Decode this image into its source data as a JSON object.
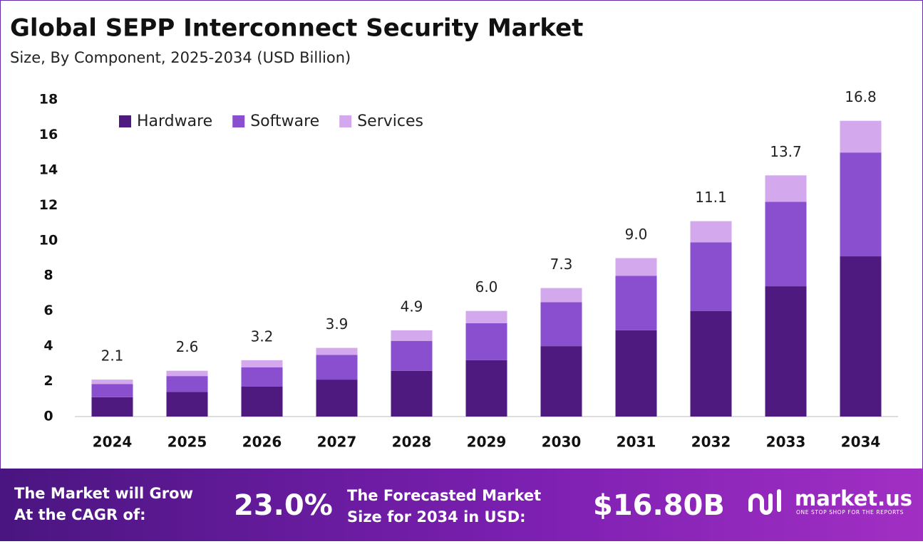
{
  "chart_data": {
    "type": "stacked-bar",
    "title": "Global SEPP Interconnect Security Market",
    "subtitle": "Size, By Component, 2025-2034 (USD Billion)",
    "categories": [
      "2024",
      "2025",
      "2026",
      "2027",
      "2028",
      "2029",
      "2030",
      "2031",
      "2032",
      "2033",
      "2034"
    ],
    "series": [
      {
        "name": "Hardware",
        "color": "#4e1a80",
        "values": [
          1.1,
          1.4,
          1.7,
          2.1,
          2.6,
          3.2,
          4.0,
          4.9,
          6.0,
          7.4,
          9.1
        ]
      },
      {
        "name": "Software",
        "color": "#8a4fcf",
        "values": [
          0.75,
          0.9,
          1.1,
          1.4,
          1.7,
          2.1,
          2.5,
          3.1,
          3.9,
          4.8,
          5.9
        ]
      },
      {
        "name": "Services",
        "color": "#d3a8ec",
        "values": [
          0.25,
          0.3,
          0.4,
          0.4,
          0.6,
          0.7,
          0.8,
          1.0,
          1.2,
          1.5,
          1.8
        ]
      }
    ],
    "totals": [
      2.1,
      2.6,
      3.2,
      3.9,
      4.9,
      6.0,
      7.3,
      9.0,
      11.1,
      13.7,
      16.8
    ],
    "total_labels": [
      "2.1",
      "2.6",
      "3.2",
      "3.9",
      "4.9",
      "6.0",
      "7.3",
      "9.0",
      "11.1",
      "13.7",
      "16.8"
    ],
    "ylim": [
      0,
      18
    ],
    "yticks": [
      0,
      2,
      4,
      6,
      8,
      10,
      12,
      14,
      16,
      18
    ],
    "grid": false,
    "legend": "top-left"
  },
  "footer": {
    "cagr_text": "The Market will Grow At the CAGR of:",
    "cagr_value": "23.0%",
    "forecast_text": "The Forecasted Market Size for 2034 in USD:",
    "forecast_value": "$16.80B",
    "brand": "market.us",
    "tagline": "ONE STOP SHOP FOR THE REPORTS"
  }
}
